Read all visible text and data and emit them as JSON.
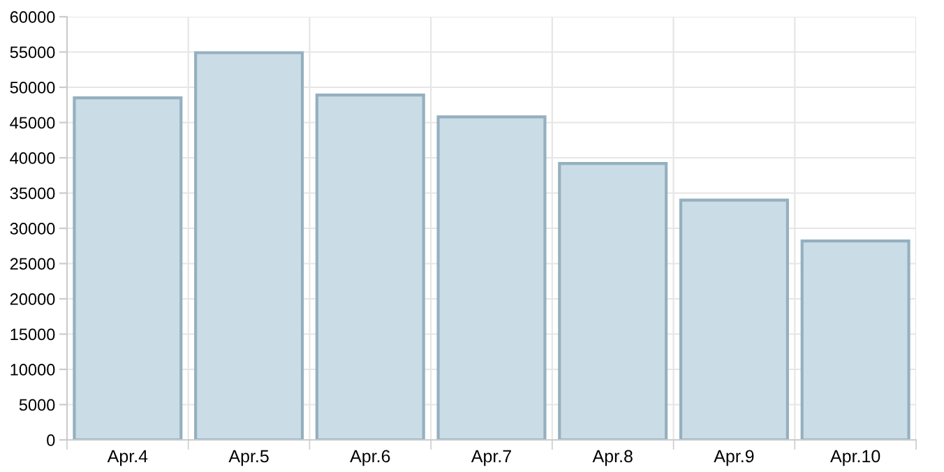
{
  "chart_data": {
    "type": "bar",
    "categories": [
      "Apr.4",
      "Apr.5",
      "Apr.6",
      "Apr.7",
      "Apr.8",
      "Apr.9",
      "Apr.10"
    ],
    "values": [
      48500,
      54900,
      48900,
      45800,
      39200,
      34000,
      28200
    ],
    "color": "#cadcE6",
    "ylim": [
      0,
      60000
    ],
    "yticks": [
      0,
      5000,
      10000,
      15000,
      20000,
      25000,
      30000,
      35000,
      40000,
      45000,
      50000,
      55000,
      60000
    ],
    "grid": true,
    "legend": false
  }
}
